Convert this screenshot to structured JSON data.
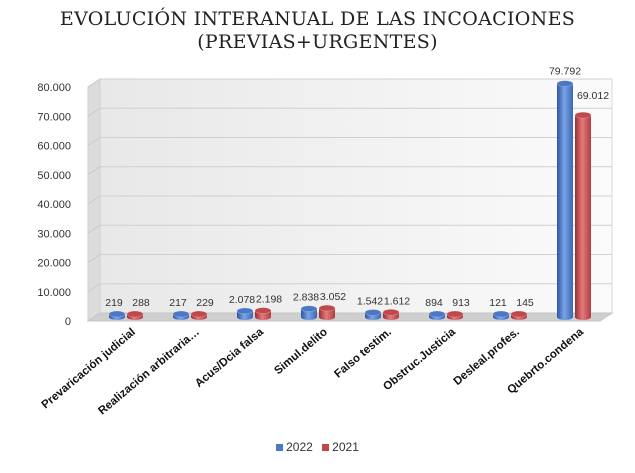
{
  "chart_data": {
    "type": "bar",
    "title_line1": "EVOLUCIÓN INTERANUAL DE LAS INCOACIONES",
    "title_line2": "(PREVIAS+URGENTES)",
    "categories": [
      "Prevaricación judicial",
      "Realización arbitraria…",
      "Acus/Dcia falsa",
      "Simul.delito",
      "Falso testim.",
      "Obstruc.Justicia",
      "Desleal.profes.",
      "Quebrto.condena"
    ],
    "series": [
      {
        "name": "2022",
        "color": "#4a78c4",
        "values": [
          219,
          217,
          2078,
          2838,
          1542,
          894,
          121,
          79792
        ],
        "labels": [
          "219",
          "217",
          "2.078",
          "2.838",
          "1.542",
          "894",
          "121",
          "79.792"
        ]
      },
      {
        "name": "2021",
        "color": "#c0474a",
        "values": [
          288,
          229,
          2198,
          3052,
          1612,
          913,
          145,
          69012
        ],
        "labels": [
          "288",
          "229",
          "2.198",
          "3.052",
          "1.612",
          "913",
          "145",
          "69.012"
        ]
      }
    ],
    "yticks": [
      0,
      10000,
      20000,
      30000,
      40000,
      50000,
      60000,
      70000,
      80000
    ],
    "ytick_labels": [
      "0",
      "10.000",
      "20.000",
      "30.000",
      "40.000",
      "50.000",
      "60.000",
      "70.000",
      "80.000"
    ],
    "ylim": [
      0,
      80000
    ],
    "legend_position": "bottom"
  }
}
